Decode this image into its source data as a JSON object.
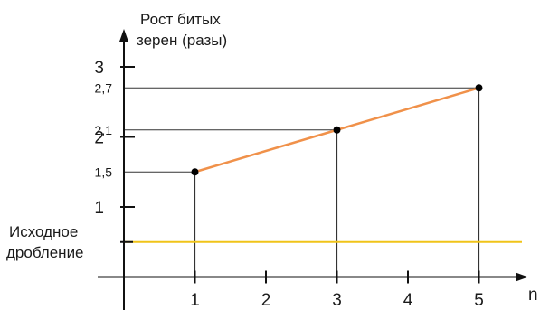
{
  "chart_data": {
    "type": "line",
    "ylabel_line1": "Рост битых",
    "ylabel_line2": "зерен (разы)",
    "xlabel": "n",
    "x_ticks": [
      "1",
      "2",
      "3",
      "4",
      "5"
    ],
    "y_ticks": [
      "1",
      "2",
      "3"
    ],
    "y_marked_values": [
      "1,5",
      "2,1",
      "2,7"
    ],
    "baseline_label_line1": "Исходное",
    "baseline_label_line2": "дробление",
    "baseline_value": 0.5,
    "series": [
      {
        "x": [
          1,
          3,
          5
        ],
        "y": [
          1.5,
          2.1,
          2.7
        ]
      }
    ],
    "xlim": [
      0,
      5.5
    ],
    "ylim": [
      0,
      3
    ],
    "grid": false,
    "colors": {
      "line": "#f0914a",
      "baseline": "#f0c419",
      "axis": "#111111",
      "guide": "#333333",
      "point": "#000000"
    }
  }
}
